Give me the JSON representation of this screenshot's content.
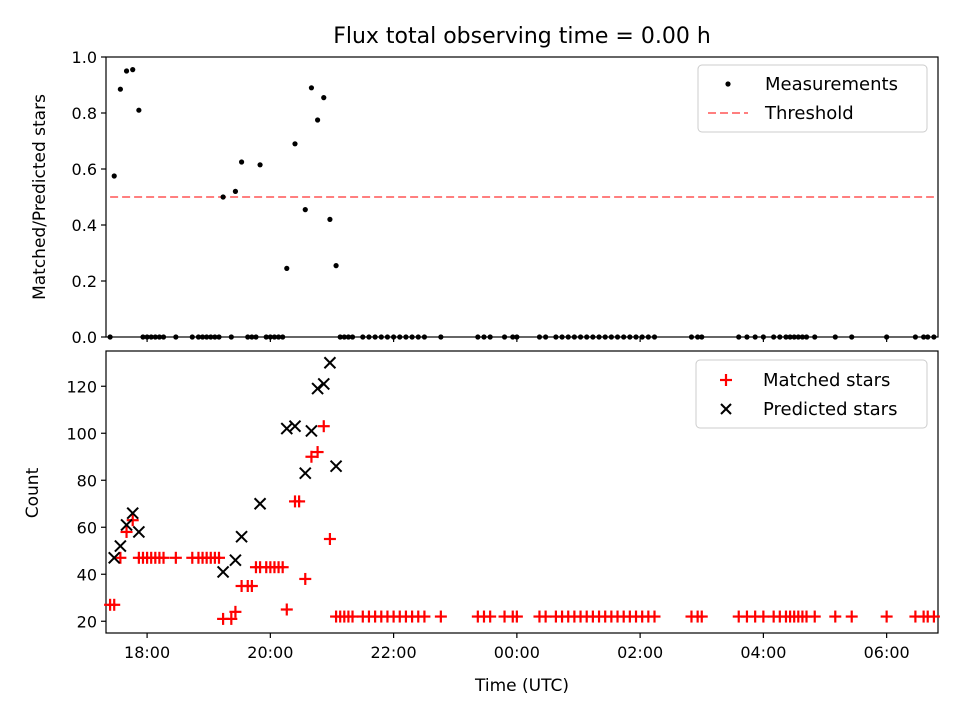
{
  "chart_data": [
    {
      "type": "scatter",
      "title": "Flux total observing time = 0.00 h",
      "ylabel": "Matched/Predicted stars",
      "ylim": [
        0,
        1.0
      ],
      "xlim": [
        "17:20",
        "06:50"
      ],
      "yticks": [
        "0.0",
        "0.2",
        "0.4",
        "0.6",
        "0.8",
        "1.0"
      ],
      "grid": false,
      "legend_position": "upper-right",
      "series": [
        {
          "name": "Measurements",
          "kind": "points",
          "color": "#000000",
          "points": [
            [
              "17:24",
              0.0
            ],
            [
              "17:28",
              0.575
            ],
            [
              "17:34",
              0.885
            ],
            [
              "17:40",
              0.95
            ],
            [
              "17:46",
              0.955
            ],
            [
              "17:52",
              0.81
            ],
            [
              "17:56",
              0.0
            ],
            [
              "18:00",
              0.0
            ],
            [
              "18:04",
              0.0
            ],
            [
              "18:08",
              0.0
            ],
            [
              "18:12",
              0.0
            ],
            [
              "18:16",
              0.0
            ],
            [
              "18:28",
              0.0
            ],
            [
              "18:44",
              0.0
            ],
            [
              "18:50",
              0.0
            ],
            [
              "18:54",
              0.0
            ],
            [
              "18:58",
              0.0
            ],
            [
              "19:02",
              0.0
            ],
            [
              "19:06",
              0.0
            ],
            [
              "19:10",
              0.0
            ],
            [
              "19:14",
              0.5
            ],
            [
              "19:22",
              0.0
            ],
            [
              "19:26",
              0.52
            ],
            [
              "19:32",
              0.625
            ],
            [
              "19:38",
              0.0
            ],
            [
              "19:42",
              0.0
            ],
            [
              "19:46",
              0.0
            ],
            [
              "19:50",
              0.615
            ],
            [
              "19:56",
              0.0
            ],
            [
              "20:00",
              0.0
            ],
            [
              "20:04",
              0.0
            ],
            [
              "20:08",
              0.0
            ],
            [
              "20:12",
              0.0
            ],
            [
              "20:16",
              0.245
            ],
            [
              "20:24",
              0.69
            ],
            [
              "20:34",
              0.455
            ],
            [
              "20:40",
              0.89
            ],
            [
              "20:46",
              0.775
            ],
            [
              "20:52",
              0.855
            ],
            [
              "20:58",
              0.42
            ],
            [
              "21:04",
              0.255
            ],
            [
              "21:08",
              0.0
            ],
            [
              "21:12",
              0.0
            ],
            [
              "21:16",
              0.0
            ],
            [
              "21:20",
              0.0
            ],
            [
              "21:30",
              0.0
            ],
            [
              "21:36",
              0.0
            ],
            [
              "21:42",
              0.0
            ],
            [
              "21:48",
              0.0
            ],
            [
              "21:54",
              0.0
            ],
            [
              "22:00",
              0.0
            ],
            [
              "22:06",
              0.0
            ],
            [
              "22:12",
              0.0
            ],
            [
              "22:18",
              0.0
            ],
            [
              "22:24",
              0.0
            ],
            [
              "22:30",
              0.0
            ],
            [
              "22:46",
              0.0
            ],
            [
              "23:22",
              0.0
            ],
            [
              "23:28",
              0.0
            ],
            [
              "23:34",
              0.0
            ],
            [
              "23:48",
              0.0
            ],
            [
              "23:56",
              0.0
            ],
            [
              "00:00",
              0.0
            ],
            [
              "00:22",
              0.0
            ],
            [
              "00:28",
              0.0
            ],
            [
              "00:38",
              0.0
            ],
            [
              "00:44",
              0.0
            ],
            [
              "00:50",
              0.0
            ],
            [
              "00:56",
              0.0
            ],
            [
              "01:02",
              0.0
            ],
            [
              "01:08",
              0.0
            ],
            [
              "01:14",
              0.0
            ],
            [
              "01:20",
              0.0
            ],
            [
              "01:26",
              0.0
            ],
            [
              "01:32",
              0.0
            ],
            [
              "01:38",
              0.0
            ],
            [
              "01:44",
              0.0
            ],
            [
              "01:50",
              0.0
            ],
            [
              "01:56",
              0.0
            ],
            [
              "02:02",
              0.0
            ],
            [
              "02:08",
              0.0
            ],
            [
              "02:14",
              0.0
            ],
            [
              "02:50",
              0.0
            ],
            [
              "02:56",
              0.0
            ],
            [
              "03:00",
              0.0
            ],
            [
              "03:36",
              0.0
            ],
            [
              "03:44",
              0.0
            ],
            [
              "03:52",
              0.0
            ],
            [
              "04:00",
              0.0
            ],
            [
              "04:10",
              0.0
            ],
            [
              "04:16",
              0.0
            ],
            [
              "04:22",
              0.0
            ],
            [
              "04:26",
              0.0
            ],
            [
              "04:30",
              0.0
            ],
            [
              "04:34",
              0.0
            ],
            [
              "04:38",
              0.0
            ],
            [
              "04:42",
              0.0
            ],
            [
              "04:50",
              0.0
            ],
            [
              "05:10",
              0.0
            ],
            [
              "05:26",
              0.0
            ],
            [
              "06:00",
              0.0
            ],
            [
              "06:28",
              0.0
            ],
            [
              "06:36",
              0.0
            ],
            [
              "06:40",
              0.0
            ],
            [
              "06:46",
              0.0
            ]
          ]
        },
        {
          "name": "Threshold",
          "kind": "dashed-line",
          "color": "#ff7f7f",
          "points": [
            [
              "17:24",
              0.5
            ],
            [
              "06:46",
              0.5
            ]
          ]
        }
      ]
    },
    {
      "type": "scatter",
      "title": "",
      "xlabel": "Time (UTC)",
      "ylabel": "Count",
      "ylim": [
        15,
        135
      ],
      "xlim": [
        "17:20",
        "06:50"
      ],
      "xticks": [
        "18:00",
        "20:00",
        "22:00",
        "00:00",
        "02:00",
        "04:00",
        "06:00"
      ],
      "yticks": [
        "20",
        "40",
        "60",
        "80",
        "100",
        "120"
      ],
      "grid": false,
      "legend_position": "upper-right",
      "series": [
        {
          "name": "Matched stars",
          "kind": "plus",
          "color": "#ff0000",
          "points": [
            [
              "17:24",
              27
            ],
            [
              "17:28",
              27
            ],
            [
              "17:34",
              47
            ],
            [
              "17:40",
              58
            ],
            [
              "17:46",
              63
            ],
            [
              "17:52",
              47
            ],
            [
              "17:56",
              47
            ],
            [
              "18:00",
              47
            ],
            [
              "18:04",
              47
            ],
            [
              "18:08",
              47
            ],
            [
              "18:12",
              47
            ],
            [
              "18:16",
              47
            ],
            [
              "18:28",
              47
            ],
            [
              "18:44",
              47
            ],
            [
              "18:50",
              47
            ],
            [
              "18:54",
              47
            ],
            [
              "18:58",
              47
            ],
            [
              "19:02",
              47
            ],
            [
              "19:06",
              47
            ],
            [
              "19:10",
              47
            ],
            [
              "19:14",
              21
            ],
            [
              "19:22",
              21
            ],
            [
              "19:26",
              24
            ],
            [
              "19:32",
              35
            ],
            [
              "19:38",
              35
            ],
            [
              "19:42",
              35
            ],
            [
              "19:46",
              43
            ],
            [
              "19:50",
              43
            ],
            [
              "19:56",
              43
            ],
            [
              "20:00",
              43
            ],
            [
              "20:04",
              43
            ],
            [
              "20:08",
              43
            ],
            [
              "20:12",
              43
            ],
            [
              "20:16",
              25
            ],
            [
              "20:24",
              71
            ],
            [
              "20:28",
              71
            ],
            [
              "20:34",
              38
            ],
            [
              "20:40",
              90
            ],
            [
              "20:46",
              92
            ],
            [
              "20:52",
              103
            ],
            [
              "20:58",
              55
            ],
            [
              "21:04",
              22
            ],
            [
              "21:08",
              22
            ],
            [
              "21:12",
              22
            ],
            [
              "21:16",
              22
            ],
            [
              "21:20",
              22
            ],
            [
              "21:30",
              22
            ],
            [
              "21:36",
              22
            ],
            [
              "21:42",
              22
            ],
            [
              "21:48",
              22
            ],
            [
              "21:54",
              22
            ],
            [
              "22:00",
              22
            ],
            [
              "22:06",
              22
            ],
            [
              "22:12",
              22
            ],
            [
              "22:18",
              22
            ],
            [
              "22:24",
              22
            ],
            [
              "22:30",
              22
            ],
            [
              "22:46",
              22
            ],
            [
              "23:22",
              22
            ],
            [
              "23:28",
              22
            ],
            [
              "23:34",
              22
            ],
            [
              "23:48",
              22
            ],
            [
              "23:56",
              22
            ],
            [
              "00:00",
              22
            ],
            [
              "00:22",
              22
            ],
            [
              "00:28",
              22
            ],
            [
              "00:38",
              22
            ],
            [
              "00:44",
              22
            ],
            [
              "00:50",
              22
            ],
            [
              "00:56",
              22
            ],
            [
              "01:02",
              22
            ],
            [
              "01:08",
              22
            ],
            [
              "01:14",
              22
            ],
            [
              "01:20",
              22
            ],
            [
              "01:26",
              22
            ],
            [
              "01:32",
              22
            ],
            [
              "01:38",
              22
            ],
            [
              "01:44",
              22
            ],
            [
              "01:50",
              22
            ],
            [
              "01:56",
              22
            ],
            [
              "02:02",
              22
            ],
            [
              "02:08",
              22
            ],
            [
              "02:14",
              22
            ],
            [
              "02:50",
              22
            ],
            [
              "02:56",
              22
            ],
            [
              "03:00",
              22
            ],
            [
              "03:36",
              22
            ],
            [
              "03:44",
              22
            ],
            [
              "03:52",
              22
            ],
            [
              "04:00",
              22
            ],
            [
              "04:10",
              22
            ],
            [
              "04:16",
              22
            ],
            [
              "04:22",
              22
            ],
            [
              "04:26",
              22
            ],
            [
              "04:30",
              22
            ],
            [
              "04:34",
              22
            ],
            [
              "04:38",
              22
            ],
            [
              "04:42",
              22
            ],
            [
              "04:50",
              22
            ],
            [
              "05:10",
              22
            ],
            [
              "05:26",
              22
            ],
            [
              "06:00",
              22
            ],
            [
              "06:28",
              22
            ],
            [
              "06:36",
              22
            ],
            [
              "06:40",
              22
            ],
            [
              "06:46",
              22
            ]
          ]
        },
        {
          "name": "Predicted stars",
          "kind": "x",
          "color": "#000000",
          "points": [
            [
              "17:28",
              47
            ],
            [
              "17:34",
              52
            ],
            [
              "17:40",
              61
            ],
            [
              "17:46",
              66
            ],
            [
              "17:52",
              58
            ],
            [
              "19:14",
              41
            ],
            [
              "19:26",
              46
            ],
            [
              "19:32",
              56
            ],
            [
              "19:50",
              70
            ],
            [
              "20:16",
              102
            ],
            [
              "20:24",
              103
            ],
            [
              "20:34",
              83
            ],
            [
              "20:40",
              101
            ],
            [
              "20:46",
              119
            ],
            [
              "20:52",
              121
            ],
            [
              "20:58",
              130
            ],
            [
              "21:04",
              86
            ]
          ]
        }
      ]
    }
  ]
}
